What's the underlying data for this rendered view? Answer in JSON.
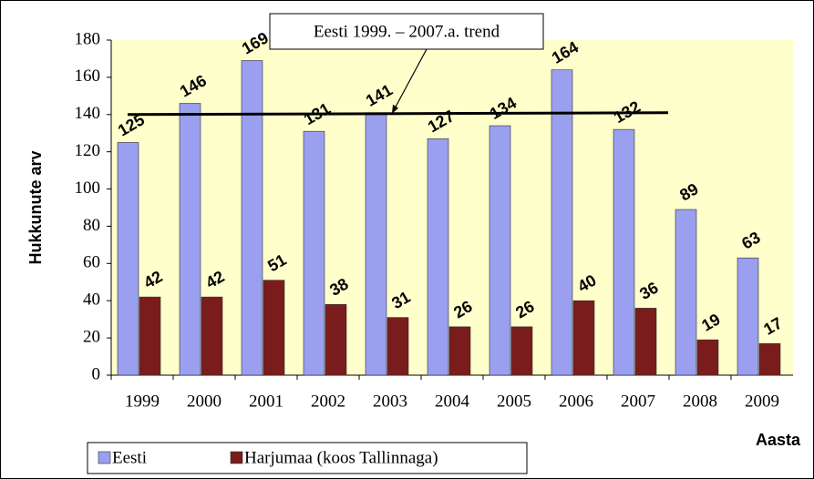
{
  "chart_data": {
    "type": "bar",
    "ylabel": "Hukkunute arv",
    "xlabel": "Aasta",
    "categories": [
      "1999",
      "2000",
      "2001",
      "2002",
      "2003",
      "2004",
      "2005",
      "2006",
      "2007",
      "2008",
      "2009"
    ],
    "series": [
      {
        "name": "Eesti",
        "color": "#9a9ff0",
        "values": [
          125,
          146,
          169,
          131,
          141,
          127,
          134,
          164,
          132,
          89,
          63
        ]
      },
      {
        "name": "Harjumaa (koos Tallinnaga)",
        "color": "#7a1c1c",
        "values": [
          42,
          42,
          51,
          38,
          31,
          26,
          26,
          40,
          36,
          19,
          17
        ]
      }
    ],
    "ylim": [
      0,
      180
    ],
    "yticks": [
      0,
      20,
      40,
      60,
      80,
      100,
      120,
      140,
      160,
      180
    ],
    "trend": {
      "label": "Eesti 1999. – 2007.a. trend",
      "from": "1999",
      "to": "2007",
      "values": [
        140,
        141
      ]
    },
    "legend": "bottom-left"
  }
}
